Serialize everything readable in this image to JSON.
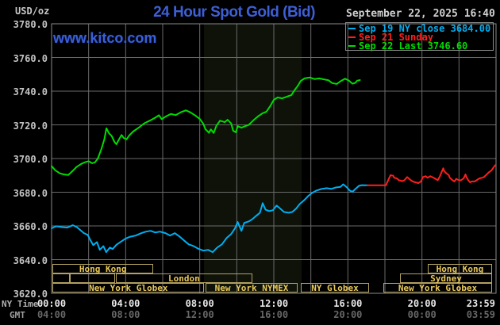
{
  "header": {
    "unit": "USD/oz",
    "title": "24 Hour Spot Gold (Bid)",
    "datetime": "September 22, 2025 16:40",
    "watermark": "www.kitco.com"
  },
  "axis_captions": {
    "row1": "NY Time",
    "row2": "GMT"
  },
  "colors": {
    "background": "#000000",
    "grid": "#6a6a6a",
    "plot_border": "#8a8a8a",
    "nymex_band": "#0e1209",
    "session_border": "#b3a15f",
    "session_text": "#e8c85a",
    "title_blue": "#3d5fd6",
    "sep19": "#00aef0",
    "sep21": "#ff1e1e",
    "sep22": "#00dc00"
  },
  "legend": {
    "items": [
      {
        "label": "Sep 19 NY close 3684.00",
        "color": "#00aef0"
      },
      {
        "label": "Sep 21 Sunday",
        "color": "#ff1e1e"
      },
      {
        "label": "Sep 22 Last 3746.60",
        "color": "#00dc00"
      }
    ]
  },
  "chart_data": {
    "type": "line",
    "title": "24 Hour Spot Gold (Bid)",
    "xlabel": "NY Time (hours 0-24)",
    "ylabel": "USD/oz",
    "ylim": [
      3620,
      3780
    ],
    "xlim": [
      0,
      24
    ],
    "y_ticks": [
      "3780.0",
      "3760.0",
      "3740.0",
      "3720.0",
      "3700.0",
      "3680.0",
      "3660.0",
      "3640.0",
      "3620.0"
    ],
    "x_ticks": [
      {
        "h": 0,
        "ny": "00:00",
        "gmt": "04:00"
      },
      {
        "h": 4,
        "ny": "04:00",
        "gmt": "08:00"
      },
      {
        "h": 8,
        "ny": "08:00",
        "gmt": "12:00"
      },
      {
        "h": 12,
        "ny": "12:00",
        "gmt": "16:00"
      },
      {
        "h": 16,
        "ny": "16:00",
        "gmt": "20:00"
      },
      {
        "h": 20,
        "ny": "20:00",
        "gmt": "00:00"
      },
      {
        "h": 23.18,
        "ny": "23:59",
        "gmt": "03:59"
      }
    ],
    "nymex_band": {
      "h1": 8.23,
      "h2": 13.5
    },
    "series": [
      {
        "name": "Sep 19 NY close 3684.00",
        "color": "#00aef0",
        "points": [
          [
            0,
            3658.6
          ],
          [
            0.25,
            3659.8
          ],
          [
            0.55,
            3659.3
          ],
          [
            0.85,
            3659
          ],
          [
            1.15,
            3660.4
          ],
          [
            1.35,
            3659.4
          ],
          [
            1.55,
            3657.5
          ],
          [
            1.75,
            3655.7
          ],
          [
            1.95,
            3654.7
          ],
          [
            2.1,
            3651.4
          ],
          [
            2.25,
            3648.6
          ],
          [
            2.45,
            3650.4
          ],
          [
            2.6,
            3645.8
          ],
          [
            2.8,
            3648
          ],
          [
            2.95,
            3644.4
          ],
          [
            3.15,
            3647.2
          ],
          [
            3.3,
            3646.3
          ],
          [
            3.5,
            3648.8
          ],
          [
            3.75,
            3650.7
          ],
          [
            4,
            3652.5
          ],
          [
            4.25,
            3653.6
          ],
          [
            4.55,
            3654.3
          ],
          [
            4.85,
            3655.7
          ],
          [
            5.1,
            3656.6
          ],
          [
            5.35,
            3657.1
          ],
          [
            5.6,
            3656.1
          ],
          [
            5.85,
            3656.6
          ],
          [
            6.15,
            3655.7
          ],
          [
            6.4,
            3654.3
          ],
          [
            6.65,
            3655.7
          ],
          [
            6.9,
            3653.8
          ],
          [
            7.15,
            3651.4
          ],
          [
            7.4,
            3649.1
          ],
          [
            7.65,
            3648.1
          ],
          [
            7.95,
            3646.3
          ],
          [
            8.2,
            3645.3
          ],
          [
            8.45,
            3645.8
          ],
          [
            8.7,
            3644.4
          ],
          [
            8.95,
            3647.2
          ],
          [
            9.2,
            3649.1
          ],
          [
            9.45,
            3652.8
          ],
          [
            9.7,
            3655.2
          ],
          [
            9.9,
            3658.5
          ],
          [
            10.05,
            3662.3
          ],
          [
            10.25,
            3657.1
          ],
          [
            10.4,
            3661.8
          ],
          [
            10.65,
            3662.7
          ],
          [
            10.85,
            3664.1
          ],
          [
            11.05,
            3666
          ],
          [
            11.25,
            3667.8
          ],
          [
            11.4,
            3673.5
          ],
          [
            11.55,
            3669.7
          ],
          [
            11.75,
            3668.8
          ],
          [
            11.95,
            3669.3
          ],
          [
            12.15,
            3672.1
          ],
          [
            12.35,
            3670.2
          ],
          [
            12.55,
            3668.3
          ],
          [
            12.8,
            3667.8
          ],
          [
            13,
            3668.3
          ],
          [
            13.2,
            3670.2
          ],
          [
            13.4,
            3673
          ],
          [
            13.65,
            3675.4
          ],
          [
            13.85,
            3677.7
          ],
          [
            14.05,
            3679.5
          ],
          [
            14.3,
            3681
          ],
          [
            14.55,
            3681.9
          ],
          [
            14.85,
            3682.4
          ],
          [
            15.1,
            3682
          ],
          [
            15.35,
            3682.8
          ],
          [
            15.6,
            3683.2
          ],
          [
            15.75,
            3684.7
          ],
          [
            15.95,
            3682.8
          ],
          [
            16.1,
            3681
          ],
          [
            16.25,
            3680.3
          ],
          [
            16.4,
            3681.9
          ],
          [
            16.6,
            3683.8
          ],
          [
            16.75,
            3684.2
          ],
          [
            17.05,
            3684.1
          ]
        ]
      },
      {
        "name": "Sep 21 Sunday",
        "color": "#ff1e1e",
        "points": [
          [
            17.05,
            3684.1
          ],
          [
            18.05,
            3684.1
          ],
          [
            18.15,
            3686.5
          ],
          [
            18.3,
            3690.1
          ],
          [
            18.45,
            3689.8
          ],
          [
            18.5,
            3688.6
          ],
          [
            18.65,
            3688.2
          ],
          [
            18.75,
            3687.1
          ],
          [
            18.95,
            3686.6
          ],
          [
            19.05,
            3687.1
          ],
          [
            19.2,
            3689
          ],
          [
            19.35,
            3687.6
          ],
          [
            19.5,
            3686.4
          ],
          [
            19.65,
            3685.9
          ],
          [
            19.8,
            3685.4
          ],
          [
            19.95,
            3686.4
          ],
          [
            20.05,
            3689
          ],
          [
            20.2,
            3689.5
          ],
          [
            20.3,
            3688.6
          ],
          [
            20.45,
            3689.5
          ],
          [
            20.55,
            3689
          ],
          [
            20.7,
            3688.2
          ],
          [
            20.85,
            3687.1
          ],
          [
            20.95,
            3689
          ],
          [
            21.15,
            3694.2
          ],
          [
            21.2,
            3692.5
          ],
          [
            21.3,
            3691.4
          ],
          [
            21.45,
            3690.1
          ],
          [
            21.5,
            3688.6
          ],
          [
            21.65,
            3687.1
          ],
          [
            21.75,
            3686.4
          ],
          [
            21.85,
            3687.9
          ],
          [
            22,
            3687.1
          ],
          [
            22.1,
            3687.1
          ],
          [
            22.25,
            3688.2
          ],
          [
            22.35,
            3690.6
          ],
          [
            22.4,
            3689
          ],
          [
            22.5,
            3687.1
          ],
          [
            22.6,
            3685.9
          ],
          [
            22.7,
            3686.4
          ],
          [
            22.85,
            3686.4
          ],
          [
            22.95,
            3687.1
          ],
          [
            23.1,
            3688.2
          ],
          [
            23.25,
            3688.6
          ],
          [
            23.35,
            3689
          ],
          [
            23.5,
            3690.6
          ],
          [
            23.6,
            3691.7
          ],
          [
            23.75,
            3692.9
          ],
          [
            23.85,
            3694.5
          ],
          [
            23.96,
            3696.1
          ]
        ]
      },
      {
        "name": "Sep 22 Last 3746.60",
        "color": "#00dc00",
        "points": [
          [
            0,
            3695.5
          ],
          [
            0.2,
            3693
          ],
          [
            0.45,
            3691.2
          ],
          [
            0.65,
            3690.6
          ],
          [
            0.9,
            3690.2
          ],
          [
            1.1,
            3692.3
          ],
          [
            1.35,
            3695
          ],
          [
            1.6,
            3696.8
          ],
          [
            1.8,
            3697.8
          ],
          [
            2,
            3698.4
          ],
          [
            2.2,
            3697.2
          ],
          [
            2.35,
            3697.8
          ],
          [
            2.5,
            3700
          ],
          [
            2.7,
            3706
          ],
          [
            2.85,
            3711.5
          ],
          [
            2.96,
            3718
          ],
          [
            3.1,
            3715
          ],
          [
            3.25,
            3713.3
          ],
          [
            3.4,
            3709.8
          ],
          [
            3.5,
            3708.5
          ],
          [
            3.65,
            3711.6
          ],
          [
            3.78,
            3714
          ],
          [
            3.9,
            3712.2
          ],
          [
            4.05,
            3711.4
          ],
          [
            4.2,
            3713.8
          ],
          [
            4.4,
            3716
          ],
          [
            4.7,
            3718.3
          ],
          [
            5,
            3720.9
          ],
          [
            5.3,
            3722.5
          ],
          [
            5.6,
            3724.3
          ],
          [
            5.8,
            3725.7
          ],
          [
            5.95,
            3723.4
          ],
          [
            6.2,
            3725.2
          ],
          [
            6.45,
            3726.5
          ],
          [
            6.7,
            3725.8
          ],
          [
            7,
            3727.6
          ],
          [
            7.25,
            3728.6
          ],
          [
            7.5,
            3727.4
          ],
          [
            7.75,
            3725.6
          ],
          [
            8,
            3723.6
          ],
          [
            8.2,
            3720.5
          ],
          [
            8.3,
            3717.5
          ],
          [
            8.5,
            3715.3
          ],
          [
            8.6,
            3717.3
          ],
          [
            8.75,
            3715.2
          ],
          [
            8.9,
            3719.5
          ],
          [
            9.1,
            3722.5
          ],
          [
            9.35,
            3721.6
          ],
          [
            9.5,
            3723
          ],
          [
            9.7,
            3720.8
          ],
          [
            9.8,
            3716.5
          ],
          [
            9.95,
            3715.6
          ],
          [
            10.05,
            3719.2
          ],
          [
            10.25,
            3718.3
          ],
          [
            10.45,
            3719.2
          ],
          [
            10.65,
            3720
          ],
          [
            10.9,
            3722.7
          ],
          [
            11.15,
            3725.1
          ],
          [
            11.4,
            3726.9
          ],
          [
            11.6,
            3727.8
          ],
          [
            11.8,
            3731
          ],
          [
            12,
            3734.8
          ],
          [
            12.2,
            3736.3
          ],
          [
            12.45,
            3735.7
          ],
          [
            12.75,
            3736.9
          ],
          [
            12.95,
            3737.7
          ],
          [
            13.1,
            3740.3
          ],
          [
            13.3,
            3743.2
          ],
          [
            13.45,
            3746
          ],
          [
            13.65,
            3747.6
          ],
          [
            13.95,
            3748.1
          ],
          [
            14.2,
            3747.2
          ],
          [
            14.45,
            3747.6
          ],
          [
            14.7,
            3747
          ],
          [
            14.95,
            3746.5
          ],
          [
            15.15,
            3744.8
          ],
          [
            15.4,
            3744.3
          ],
          [
            15.6,
            3745.9
          ],
          [
            15.85,
            3747.4
          ],
          [
            16.05,
            3746.3
          ],
          [
            16.25,
            3744.4
          ],
          [
            16.4,
            3744.9
          ],
          [
            16.5,
            3746.2
          ],
          [
            16.65,
            3746.6
          ]
        ]
      }
    ],
    "sessions": [
      {
        "row": 0,
        "label": "Hong Kong",
        "h1": 0.05,
        "h2": 5.5
      },
      {
        "row": 0,
        "label": "Hong Kong",
        "h1": 20.3,
        "h2": 23.8
      },
      {
        "row": 1,
        "label": "",
        "h1": 0.05,
        "h2": 1.0
      },
      {
        "row": 1,
        "label": "",
        "h1": 1.0,
        "h2": 3.45
      },
      {
        "row": 1,
        "label": "London",
        "h1": 3.45,
        "h2": 10.85
      },
      {
        "row": 1,
        "label": "Sydney",
        "h1": 18.8,
        "h2": 23.8
      },
      {
        "row": 2,
        "label": "New York Globex",
        "h1": 0.05,
        "h2": 8.25
      },
      {
        "row": 2,
        "label": "New York NYMEX",
        "h1": 8.3,
        "h2": 13.3
      },
      {
        "row": 2,
        "label": "NY Globex",
        "h1": 13.45,
        "h2": 17.15
      },
      {
        "row": 2,
        "label": "New York Globex",
        "h1": 17.9,
        "h2": 23.8
      }
    ]
  }
}
